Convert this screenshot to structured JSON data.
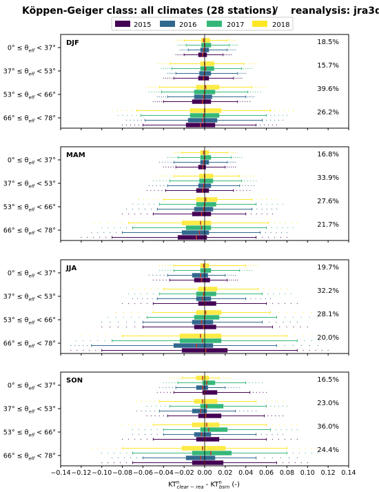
{
  "chart_data": {
    "type": "box",
    "title_left": "Köppen-Geiger class: all climates (28 stations)",
    "title_sep": "/",
    "title_right": "reanalysis: jra3q",
    "xlabel": "KT",
    "xlabel_sup_1": "n",
    "xlabel_sub_1": "clear − rea",
    "xlabel_mid": " - KT",
    "xlabel_sup_2": "n",
    "xlabel_sub_2": "bsrn",
    "xlabel_unit": " (-)",
    "xlim": [
      -0.14,
      0.14
    ],
    "xticks": [
      "−0.14",
      "−0.12",
      "−0.10",
      "−0.08",
      "−0.06",
      "−0.04",
      "−0.02",
      "0.00",
      "0.02",
      "0.04",
      "0.06",
      "0.08",
      "0.10",
      "0.12",
      "0.14"
    ],
    "xtick_values": [
      -0.14,
      -0.12,
      -0.1,
      -0.08,
      -0.06,
      -0.04,
      -0.02,
      0.0,
      0.02,
      0.04,
      0.06,
      0.08,
      0.1,
      0.12,
      0.14
    ],
    "legend": [
      {
        "name": "2015",
        "color": "#440154"
      },
      {
        "name": "2016",
        "color": "#31688e"
      },
      {
        "name": "2017",
        "color": "#35b779"
      },
      {
        "name": "2018",
        "color": "#fde725"
      }
    ],
    "bin_labels": [
      "0° ≤ θ",
      "37° ≤ θ",
      "53° ≤ θ",
      "66° ≤ θ"
    ],
    "bin_uppers": [
      "< 37°",
      "< 53°",
      "< 66°",
      "< 78°"
    ],
    "bin_sub": "eff",
    "panels": [
      {
        "season": "DJF",
        "percentages": [
          "18.5%",
          "15.7%",
          "39.6%",
          "26.2%"
        ],
        "bins": [
          [
            {
              "q1": -0.006,
              "med": -0.002,
              "q3": 0.002,
              "wl": -0.02,
              "wh": 0.018,
              "fl": -0.028,
              "fh": 0.026
            },
            {
              "q1": -0.004,
              "med": -0.001,
              "q3": 0.004,
              "wl": -0.016,
              "wh": 0.022,
              "fl": -0.024,
              "fh": 0.03
            },
            {
              "q1": -0.003,
              "med": 0.0,
              "q3": 0.006,
              "wl": -0.018,
              "wh": 0.024,
              "fl": -0.026,
              "fh": 0.032
            },
            {
              "q1": -0.003,
              "med": -0.001,
              "q3": 0.005,
              "wl": -0.02,
              "wh": 0.022,
              "fl": -0.028,
              "fh": 0.03
            }
          ],
          [
            {
              "q1": -0.006,
              "med": -0.001,
              "q3": 0.004,
              "wl": -0.03,
              "wh": 0.028,
              "fl": -0.04,
              "fh": 0.036
            },
            {
              "q1": -0.005,
              "med": 0.0,
              "q3": 0.006,
              "wl": -0.028,
              "wh": 0.032,
              "fl": -0.036,
              "fh": 0.04
            },
            {
              "q1": -0.004,
              "med": 0.001,
              "q3": 0.009,
              "wl": -0.032,
              "wh": 0.036,
              "fl": -0.042,
              "fh": 0.046
            },
            {
              "q1": -0.004,
              "med": 0.0,
              "q3": 0.009,
              "wl": -0.034,
              "wh": 0.038,
              "fl": -0.046,
              "fh": 0.05
            }
          ],
          [
            {
              "q1": -0.012,
              "med": -0.002,
              "q3": 0.006,
              "wl": -0.04,
              "wh": 0.032,
              "fl": -0.05,
              "fh": 0.044
            },
            {
              "q1": -0.01,
              "med": -0.001,
              "q3": 0.007,
              "wl": -0.036,
              "wh": 0.04,
              "fl": -0.046,
              "fh": 0.048
            },
            {
              "q1": -0.01,
              "med": 0.0,
              "q3": 0.01,
              "wl": -0.042,
              "wh": 0.042,
              "fl": -0.054,
              "fh": 0.054
            },
            {
              "q1": -0.008,
              "med": 0.001,
              "q3": 0.014,
              "wl": -0.044,
              "wh": 0.046,
              "fl": -0.056,
              "fh": 0.06
            }
          ],
          [
            {
              "q1": -0.018,
              "med": -0.004,
              "q3": 0.01,
              "wl": -0.06,
              "wh": 0.05,
              "fl": -0.08,
              "fh": 0.07
            },
            {
              "q1": -0.016,
              "med": -0.002,
              "q3": 0.012,
              "wl": -0.058,
              "wh": 0.056,
              "fl": -0.076,
              "fh": 0.076
            },
            {
              "q1": -0.014,
              "med": -0.001,
              "q3": 0.014,
              "wl": -0.062,
              "wh": 0.06,
              "fl": -0.084,
              "fh": 0.08
            },
            {
              "q1": -0.014,
              "med": 0.0,
              "q3": 0.016,
              "wl": -0.066,
              "wh": 0.064,
              "fl": -0.09,
              "fh": 0.086
            }
          ]
        ]
      },
      {
        "season": "MAM",
        "percentages": [
          "16.8%",
          "33.9%",
          "27.6%",
          "21.7%"
        ],
        "bins": [
          [
            {
              "q1": -0.006,
              "med": -0.002,
              "q3": 0.001,
              "wl": -0.028,
              "wh": 0.02,
              "fl": -0.04,
              "fh": 0.03
            },
            {
              "q1": -0.004,
              "med": -0.001,
              "q3": 0.004,
              "wl": -0.03,
              "wh": 0.022,
              "fl": -0.044,
              "fh": 0.03
            },
            {
              "q1": -0.004,
              "med": 0.0,
              "q3": 0.006,
              "wl": -0.026,
              "wh": 0.026,
              "fl": -0.036,
              "fh": 0.036
            },
            {
              "q1": -0.004,
              "med": -0.001,
              "q3": 0.004,
              "wl": -0.022,
              "wh": 0.022,
              "fl": -0.03,
              "fh": 0.03
            }
          ],
          [
            {
              "q1": -0.008,
              "med": -0.002,
              "q3": 0.004,
              "wl": -0.038,
              "wh": 0.028,
              "fl": -0.056,
              "fh": 0.044
            },
            {
              "q1": -0.006,
              "med": -0.001,
              "q3": 0.006,
              "wl": -0.036,
              "wh": 0.034,
              "fl": -0.054,
              "fh": 0.048
            },
            {
              "q1": -0.005,
              "med": 0.0,
              "q3": 0.008,
              "wl": -0.034,
              "wh": 0.036,
              "fl": -0.05,
              "fh": 0.05
            },
            {
              "q1": -0.005,
              "med": 0.0,
              "q3": 0.008,
              "wl": -0.03,
              "wh": 0.034,
              "fl": -0.046,
              "fh": 0.048
            }
          ],
          [
            {
              "q1": -0.012,
              "med": -0.003,
              "q3": 0.006,
              "wl": -0.05,
              "wh": 0.04,
              "fl": -0.08,
              "fh": 0.066
            },
            {
              "q1": -0.01,
              "med": -0.001,
              "q3": 0.008,
              "wl": -0.046,
              "wh": 0.046,
              "fl": -0.076,
              "fh": 0.07
            },
            {
              "q1": -0.008,
              "med": 0.0,
              "q3": 0.011,
              "wl": -0.044,
              "wh": 0.05,
              "fl": -0.07,
              "fh": 0.076
            },
            {
              "q1": -0.008,
              "med": 0.001,
              "q3": 0.012,
              "wl": -0.04,
              "wh": 0.046,
              "fl": -0.064,
              "fh": 0.07
            }
          ],
          [
            {
              "q1": -0.026,
              "med": -0.008,
              "q3": 0.002,
              "wl": -0.09,
              "wh": 0.05,
              "fl": -0.12,
              "fh": 0.08
            },
            {
              "q1": -0.022,
              "med": -0.005,
              "q3": 0.004,
              "wl": -0.08,
              "wh": 0.054,
              "fl": -0.11,
              "fh": 0.08
            },
            {
              "q1": -0.018,
              "med": -0.003,
              "q3": 0.006,
              "wl": -0.07,
              "wh": 0.06,
              "fl": -0.1,
              "fh": 0.086
            },
            {
              "q1": -0.022,
              "med": -0.004,
              "q3": 0.006,
              "wl": -0.074,
              "wh": 0.062,
              "fl": -0.108,
              "fh": 0.09
            }
          ]
        ]
      },
      {
        "season": "JJA",
        "percentages": [
          "19.7%",
          "32.2%",
          "28.1%",
          "20.0%"
        ],
        "bins": [
          [
            {
              "q1": -0.01,
              "med": -0.003,
              "q3": 0.005,
              "wl": -0.034,
              "wh": 0.022,
              "fl": -0.05,
              "fh": 0.032
            },
            {
              "q1": -0.012,
              "med": -0.004,
              "q3": 0.003,
              "wl": -0.036,
              "wh": 0.02,
              "fl": -0.054,
              "fh": 0.03
            },
            {
              "q1": -0.004,
              "med": 0.0,
              "q3": 0.006,
              "wl": -0.03,
              "wh": 0.034,
              "fl": -0.044,
              "fh": 0.046
            },
            {
              "q1": -0.004,
              "med": -0.001,
              "q3": 0.004,
              "wl": -0.03,
              "wh": 0.04,
              "fl": -0.044,
              "fh": 0.052
            }
          ],
          [
            {
              "q1": -0.006,
              "med": 0.0,
              "q3": 0.011,
              "wl": -0.05,
              "wh": 0.06,
              "fl": -0.08,
              "fh": 0.09
            },
            {
              "q1": -0.008,
              "med": -0.002,
              "q3": 0.006,
              "wl": -0.046,
              "wh": 0.04,
              "fl": -0.07,
              "fh": 0.064
            },
            {
              "q1": -0.008,
              "med": -0.001,
              "q3": 0.011,
              "wl": -0.044,
              "wh": 0.056,
              "fl": -0.074,
              "fh": 0.084
            },
            {
              "q1": -0.006,
              "med": 0.0,
              "q3": 0.012,
              "wl": -0.04,
              "wh": 0.052,
              "fl": -0.07,
              "fh": 0.08
            }
          ],
          [
            {
              "q1": -0.01,
              "med": -0.001,
              "q3": 0.011,
              "wl": -0.06,
              "wh": 0.066,
              "fl": -0.1,
              "fh": 0.1
            },
            {
              "q1": -0.012,
              "med": -0.003,
              "q3": 0.008,
              "wl": -0.06,
              "wh": 0.056,
              "fl": -0.1,
              "fh": 0.09
            },
            {
              "q1": -0.01,
              "med": 0.0,
              "q3": 0.014,
              "wl": -0.056,
              "wh": 0.07,
              "fl": -0.094,
              "fh": 0.11
            },
            {
              "q1": -0.008,
              "med": 0.001,
              "q3": 0.016,
              "wl": -0.05,
              "wh": 0.064,
              "fl": -0.086,
              "fh": 0.104
            }
          ],
          [
            {
              "q1": -0.022,
              "med": 0.001,
              "q3": 0.022,
              "wl": -0.1,
              "wh": 0.09,
              "fl": -0.13,
              "fh": 0.12
            },
            {
              "q1": -0.03,
              "med": -0.008,
              "q3": 0.008,
              "wl": -0.11,
              "wh": 0.07,
              "fl": -0.13,
              "fh": 0.11
            },
            {
              "q1": -0.024,
              "med": -0.002,
              "q3": 0.016,
              "wl": -0.09,
              "wh": 0.09,
              "fl": -0.125,
              "fh": 0.125
            },
            {
              "q1": -0.024,
              "med": -0.004,
              "q3": 0.016,
              "wl": -0.08,
              "wh": 0.08,
              "fl": -0.12,
              "fh": 0.12
            }
          ]
        ]
      },
      {
        "season": "SON",
        "percentages": [
          "16.5%",
          "23.0%",
          "36.0%",
          "24.4%"
        ],
        "bins": [
          [
            {
              "q1": -0.002,
              "med": 0.0,
              "q3": 0.012,
              "wl": -0.03,
              "wh": 0.044,
              "fl": -0.046,
              "fh": 0.06
            },
            {
              "q1": -0.008,
              "med": -0.002,
              "q3": 0.003,
              "wl": -0.028,
              "wh": 0.02,
              "fl": -0.044,
              "fh": 0.034
            },
            {
              "q1": -0.002,
              "med": 0.002,
              "q3": 0.01,
              "wl": -0.026,
              "wh": 0.04,
              "fl": -0.04,
              "fh": 0.056
            },
            {
              "q1": -0.008,
              "med": -0.002,
              "q3": 0.004,
              "wl": -0.022,
              "wh": 0.014,
              "fl": -0.034,
              "fh": 0.026
            }
          ],
          [
            {
              "q1": -0.006,
              "med": 0.001,
              "q3": 0.016,
              "wl": -0.036,
              "wh": 0.058,
              "fl": -0.056,
              "fh": 0.076
            },
            {
              "q1": -0.012,
              "med": -0.004,
              "q3": 0.002,
              "wl": -0.044,
              "wh": 0.03,
              "fl": -0.066,
              "fh": 0.05
            },
            {
              "q1": -0.004,
              "med": 0.002,
              "q3": 0.018,
              "wl": -0.034,
              "wh": 0.06,
              "fl": -0.056,
              "fh": 0.08
            },
            {
              "q1": -0.01,
              "med": -0.002,
              "q3": 0.012,
              "wl": -0.044,
              "wh": 0.05,
              "fl": -0.066,
              "fh": 0.076
            }
          ],
          [
            {
              "q1": -0.008,
              "med": 0.0,
              "q3": 0.014,
              "wl": -0.05,
              "wh": 0.06,
              "fl": -0.08,
              "fh": 0.09
            },
            {
              "q1": -0.01,
              "med": -0.003,
              "q3": 0.006,
              "wl": -0.04,
              "wh": 0.05,
              "fl": -0.07,
              "fh": 0.076
            },
            {
              "q1": -0.004,
              "med": 0.004,
              "q3": 0.022,
              "wl": -0.04,
              "wh": 0.064,
              "fl": -0.07,
              "fh": 0.09
            },
            {
              "q1": -0.012,
              "med": 0.002,
              "q3": 0.014,
              "wl": -0.05,
              "wh": 0.06,
              "fl": -0.08,
              "fh": 0.09
            }
          ],
          [
            {
              "q1": -0.012,
              "med": 0.0,
              "q3": 0.018,
              "wl": -0.07,
              "wh": 0.07,
              "fl": -0.1,
              "fh": 0.1
            },
            {
              "q1": -0.018,
              "med": -0.004,
              "q3": 0.01,
              "wl": -0.06,
              "wh": 0.05,
              "fl": -0.09,
              "fh": 0.09
            },
            {
              "q1": -0.012,
              "med": 0.006,
              "q3": 0.026,
              "wl": -0.07,
              "wh": 0.08,
              "fl": -0.1,
              "fh": 0.11
            },
            {
              "q1": -0.022,
              "med": -0.002,
              "q3": 0.02,
              "wl": -0.08,
              "wh": 0.08,
              "fl": -0.11,
              "fh": 0.11
            }
          ]
        ]
      }
    ]
  }
}
